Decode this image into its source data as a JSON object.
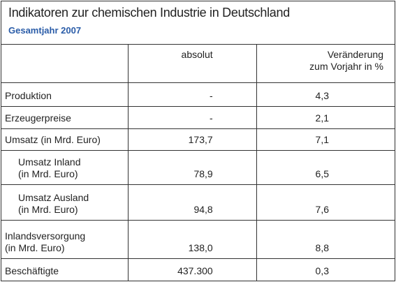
{
  "header": {
    "title": "Indikatoren zur chemischen Industrie in Deutschland",
    "subtitle": "Gesamtjahr 2007"
  },
  "table": {
    "columns": [
      {
        "lines": [
          "absolut"
        ]
      },
      {
        "lines": [
          "Veränderung",
          "zum Vorjahr in %"
        ]
      }
    ],
    "rows": [
      {
        "label": [
          "Produktion"
        ],
        "absolut": "-",
        "change": "4,3"
      },
      {
        "label": [
          "Erzeugerpreise"
        ],
        "absolut": "-",
        "change": "2,1"
      },
      {
        "label": [
          "Umsatz (in Mrd. Euro)"
        ],
        "absolut": "173,7",
        "change": "7,1"
      },
      {
        "label": [
          "Umsatz Inland",
          "(in Mrd. Euro)"
        ],
        "indented": true,
        "absolut": "78,9",
        "change": "6,5"
      },
      {
        "label": [
          "Umsatz Ausland",
          "(in Mrd. Euro)"
        ],
        "indented": true,
        "absolut": "94,8",
        "change": "7,6"
      },
      {
        "label": [
          "Inlandsversorgung",
          "(in Mrd. Euro)"
        ],
        "absolut": "138,0",
        "change": "8,8"
      },
      {
        "label": [
          "Beschäftigte"
        ],
        "absolut": "437.300",
        "change": "0,3"
      }
    ]
  }
}
